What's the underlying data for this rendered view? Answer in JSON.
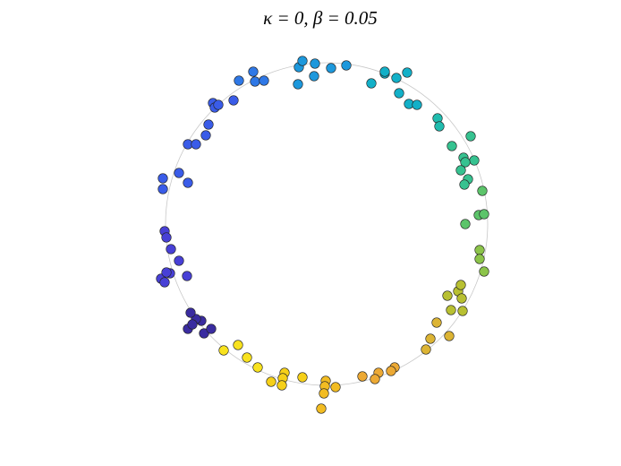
{
  "chart_data": {
    "type": "scatter",
    "title": "κ = 0, β = 0.05",
    "xlim": [
      -365,
      329
    ],
    "ylim": [
      -270,
      250
    ],
    "circle_radius": 180,
    "circle_color": "#c8c8c8",
    "x": [
      -82,
      -80,
      -70,
      -98,
      -31,
      -27,
      -13,
      5,
      22,
      -32,
      -14,
      50,
      65,
      78,
      90,
      65,
      81,
      92,
      101,
      124,
      126,
      161,
      140,
      153,
      165,
      155,
      150,
      158,
      154,
      174,
      170,
      176,
      155,
      171,
      171,
      176,
      135,
      147,
      151,
      150,
      139,
      152,
      123,
      137,
      116,
      111,
      76,
      72,
      58,
      54,
      40,
      -1,
      -2,
      10,
      -3,
      -6,
      -27,
      -47,
      -49,
      -62,
      -50,
      -77,
      -89,
      -99,
      -115,
      -155,
      -137,
      -129,
      -140,
      -146,
      -152,
      -150,
      -185,
      -181,
      -175,
      -156,
      -165,
      -179,
      -174,
      -181,
      -179,
      -183,
      -183,
      -165,
      -155,
      -155,
      -146,
      -135,
      -132,
      -127,
      -125,
      -121,
      -104
    ],
    "y": [
      170,
      159,
      160,
      160,
      175,
      182,
      179,
      174,
      177,
      156,
      165,
      157,
      168,
      163,
      169,
      170,
      146,
      134,
      133,
      118,
      109,
      98,
      87,
      74,
      71,
      69,
      60,
      50,
      44,
      37,
      10,
      11,
      0,
      -29,
      -39,
      -53,
      -80,
      -75,
      -83,
      -68,
      -96,
      -97,
      -110,
      -125,
      -128,
      -140,
      -160,
      -164,
      -166,
      -173,
      -170,
      -175,
      -181,
      -182,
      -189,
      -206,
      -171,
      -166,
      -172,
      -176,
      -180,
      -160,
      -149,
      -135,
      -141,
      -117,
      -122,
      -117,
      -108,
      -106,
      -99,
      -112,
      -61,
      -65,
      -55,
      -58,
      -41,
      -54,
      -28,
      -8,
      -15,
      51,
      39,
      57,
      46,
      89,
      89,
      99,
      111,
      135,
      130,
      133,
      138
    ],
    "colors": [
      "#2f78e6",
      "#2f78e6",
      "#2f78e6",
      "#2f78e6",
      "#1d98dc",
      "#1d98dc",
      "#1d98dc",
      "#1d98dc",
      "#1d98dc",
      "#1d98dc",
      "#1d98dc",
      "#13b0c8",
      "#13b0c8",
      "#13b0c8",
      "#13b0c8",
      "#13b0c8",
      "#13b0c8",
      "#13b0c8",
      "#13b0c8",
      "#20bcae",
      "#20bcae",
      "#36c290",
      "#36c290",
      "#36c290",
      "#36c290",
      "#36c290",
      "#36c290",
      "#36c290",
      "#36c290",
      "#5cc46a",
      "#5cc46a",
      "#5cc46a",
      "#5cc46a",
      "#8cc44a",
      "#8cc44a",
      "#8cc44a",
      "#b8c032",
      "#b8c032",
      "#b8c032",
      "#b8c032",
      "#b8c032",
      "#b8c032",
      "#dcb434",
      "#dcb434",
      "#dcb434",
      "#dcb434",
      "#eca934",
      "#eca934",
      "#eca934",
      "#eca934",
      "#eca934",
      "#f2bc22",
      "#f2bc22",
      "#f2bc22",
      "#f2bc22",
      "#f2bc22",
      "#f6d018",
      "#f6d018",
      "#f6d018",
      "#f6d018",
      "#f6d018",
      "#f8e21e",
      "#f8e21e",
      "#f8e21e",
      "#f8e21e",
      "#3a2ca0",
      "#3a2ca0",
      "#3a2ca0",
      "#3a2ca0",
      "#3a2ca0",
      "#3a2ca0",
      "#3a2ca0",
      "#4840d6",
      "#4840d6",
      "#4840d6",
      "#4840d6",
      "#4840d6",
      "#4840d6",
      "#4840d6",
      "#4840d6",
      "#4840d6",
      "#3a5ce8",
      "#3a5ce8",
      "#3a5ce8",
      "#3a5ce8",
      "#3a5ce8",
      "#3a5ce8",
      "#3a5ce8",
      "#3a5ce8",
      "#3a5ce8",
      "#3a5ce8",
      "#3a5ce8",
      "#3a5ce8"
    ]
  }
}
